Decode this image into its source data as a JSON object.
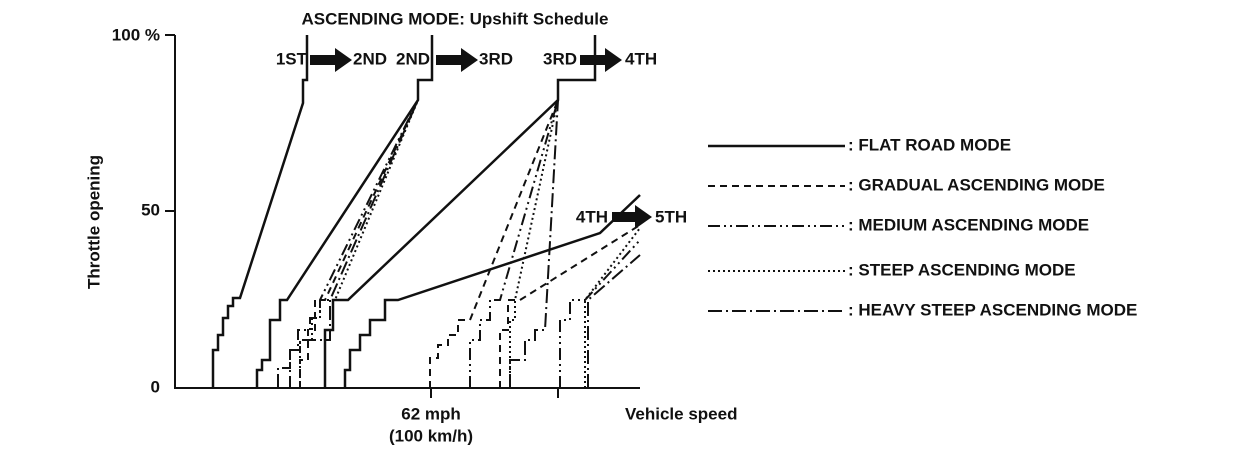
{
  "title": "ASCENDING MODE: Upshift Schedule",
  "y_axis": {
    "label": "Throttle opening",
    "ticks": [
      "100 %",
      "50",
      "0"
    ]
  },
  "x_axis": {
    "label": "Vehicle speed",
    "tick_label": [
      "62 mph",
      "(100 km/h)"
    ]
  },
  "shifts": [
    {
      "from": "1ST",
      "to": "2ND"
    },
    {
      "from": "2ND",
      "to": "3RD"
    },
    {
      "from": "3RD",
      "to": "4TH"
    },
    {
      "from": "4TH",
      "to": "5TH"
    }
  ],
  "legend": [
    ": FLAT ROAD MODE",
    ": GRADUAL ASCENDING MODE",
    ": MEDIUM ASCENDING MODE",
    ": STEEP ASCENDING MODE",
    ": HEAVY STEEP ASCENDING MODE"
  ]
}
